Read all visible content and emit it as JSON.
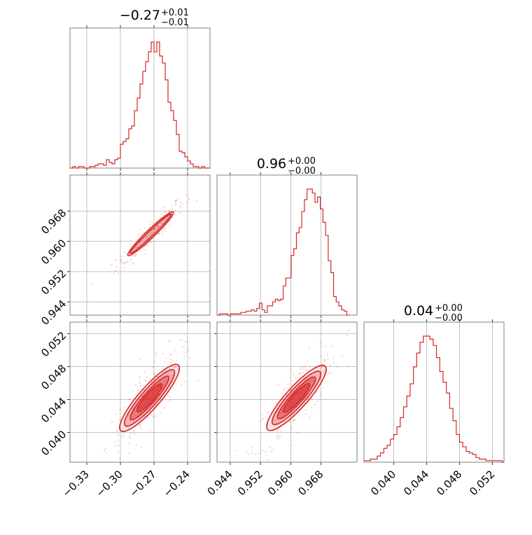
{
  "chart_data": {
    "type": "corner",
    "color": "#d62728",
    "grid": true,
    "parameters": [
      {
        "title_value": "−0.27",
        "title_plus": "+0.01",
        "title_minus": "−0.01",
        "range": [
          -0.345,
          -0.22
        ],
        "ticks": [
          -0.33,
          -0.3,
          -0.27,
          -0.24
        ],
        "tick_labels": [
          "−0.33",
          "−0.30",
          "−0.27",
          "−0.24"
        ]
      },
      {
        "title_value": "0.96",
        "title_plus": "+0.00",
        "title_minus": "−0.00",
        "range": [
          0.9405,
          0.9775
        ],
        "ticks": [
          0.944,
          0.952,
          0.96,
          0.968
        ],
        "tick_labels": [
          "0.944",
          "0.952",
          "0.960",
          "0.968"
        ]
      },
      {
        "title_value": "0.04",
        "title_plus": "+0.00",
        "title_minus": "−0.00",
        "range": [
          0.0364,
          0.0534
        ],
        "ticks": [
          0.04,
          0.044,
          0.048,
          0.052
        ],
        "tick_labels": [
          "0.040",
          "0.044",
          "0.048",
          "0.052"
        ]
      }
    ],
    "histograms": [
      {
        "param": 0,
        "x": [
          -0.345,
          -0.3425,
          -0.34,
          -0.3375,
          -0.335,
          -0.3325,
          -0.33,
          -0.3275,
          -0.325,
          -0.3225,
          -0.32,
          -0.3175,
          -0.315,
          -0.3125,
          -0.31,
          -0.3075,
          -0.305,
          -0.3025,
          -0.3,
          -0.2975,
          -0.295,
          -0.2925,
          -0.29,
          -0.2875,
          -0.285,
          -0.2825,
          -0.28,
          -0.2775,
          -0.275,
          -0.2725,
          -0.27,
          -0.2675,
          -0.265,
          -0.2625,
          -0.26,
          -0.2575,
          -0.255,
          -0.2525,
          -0.25,
          -0.2475,
          -0.245,
          -0.2425,
          -0.24,
          -0.2375,
          -0.235,
          -0.2325,
          -0.23,
          -0.2275,
          -0.225,
          -0.2225
        ],
        "counts": [
          0,
          1,
          0,
          1,
          1,
          0,
          0,
          1,
          1,
          2,
          3,
          3,
          2,
          6,
          4,
          3,
          6,
          7,
          17,
          19,
          21,
          28,
          30,
          41,
          50,
          60,
          69,
          76,
          83,
          90,
          83,
          90,
          80,
          75,
          63,
          47,
          41,
          34,
          24,
          12,
          11,
          8,
          5,
          3,
          1,
          1,
          0,
          1,
          0,
          0
        ]
      },
      {
        "param": 1,
        "x": [
          0.9405,
          0.9412,
          0.9419,
          0.9426,
          0.9433,
          0.944,
          0.9447,
          0.9454,
          0.9461,
          0.9468,
          0.9475,
          0.9482,
          0.9489,
          0.9496,
          0.9503,
          0.951,
          0.9517,
          0.9524,
          0.9531,
          0.9538,
          0.9545,
          0.9552,
          0.9559,
          0.9566,
          0.9573,
          0.958,
          0.9587,
          0.9594,
          0.9601,
          0.9608,
          0.9615,
          0.9622,
          0.9629,
          0.9636,
          0.9643,
          0.965,
          0.9657,
          0.9664,
          0.9671,
          0.9678,
          0.9685,
          0.9692,
          0.9699,
          0.9706,
          0.9713,
          0.972,
          0.9727,
          0.9734,
          0.9741,
          0.9748
        ],
        "counts": [
          0,
          1,
          1,
          1,
          0,
          1,
          1,
          1,
          1,
          2,
          2,
          3,
          3,
          4,
          3,
          5,
          9,
          4,
          2,
          7,
          7,
          10,
          12,
          11,
          12,
          22,
          28,
          28,
          45,
          50,
          62,
          66,
          78,
          87,
          95,
          95,
          92,
          85,
          89,
          80,
          70,
          60,
          41,
          32,
          14,
          10,
          7,
          4,
          3,
          0
        ]
      },
      {
        "param": 2,
        "x": [
          0.0364,
          0.0368,
          0.0372,
          0.0376,
          0.038,
          0.0384,
          0.0388,
          0.0392,
          0.0396,
          0.04,
          0.0404,
          0.0408,
          0.0412,
          0.0416,
          0.042,
          0.0424,
          0.0428,
          0.0432,
          0.0436,
          0.044,
          0.0444,
          0.0448,
          0.0452,
          0.0456,
          0.046,
          0.0464,
          0.0468,
          0.0472,
          0.0476,
          0.048,
          0.0484,
          0.0488,
          0.0492,
          0.0496,
          0.05,
          0.0504,
          0.0508,
          0.0512,
          0.0516,
          0.052,
          0.0524,
          0.0528,
          0.0532
        ],
        "counts": [
          1,
          1,
          2,
          2,
          4,
          6,
          9,
          11,
          15,
          18,
          23,
          29,
          36,
          43,
          51,
          62,
          71,
          78,
          82,
          82,
          80,
          76,
          68,
          59,
          52,
          45,
          35,
          27,
          18,
          13,
          10,
          7,
          6,
          5,
          3,
          2,
          2,
          1,
          1,
          1,
          1,
          1,
          0
        ]
      }
    ],
    "scatter_panels": [
      {
        "x_param": 0,
        "y_param": 1,
        "contour_center": [
          -0.273,
          0.962
        ],
        "contour_slope": 0.284,
        "contour_half_length": [
          0.021,
          0.019
        ],
        "contour_half_width": [
          0.0011,
          0.0007
        ]
      },
      {
        "x_param": 0,
        "y_param": 2,
        "contour_center": [
          -0.274,
          0.0442
        ],
        "contour_slope": 0.155,
        "contour_half_length": [
          0.026,
          0.022,
          0.017,
          0.011
        ],
        "contour_half_width": [
          0.0013,
          0.001,
          0.0007,
          0.0005
        ]
      },
      {
        "x_param": 1,
        "y_param": 2,
        "contour_center": [
          0.9615,
          0.0442
        ],
        "contour_slope": 0.51,
        "contour_half_length": [
          0.0085,
          0.007,
          0.0055,
          0.0038
        ],
        "contour_half_width": [
          0.0013,
          0.001,
          0.0007,
          0.0005
        ]
      }
    ]
  }
}
